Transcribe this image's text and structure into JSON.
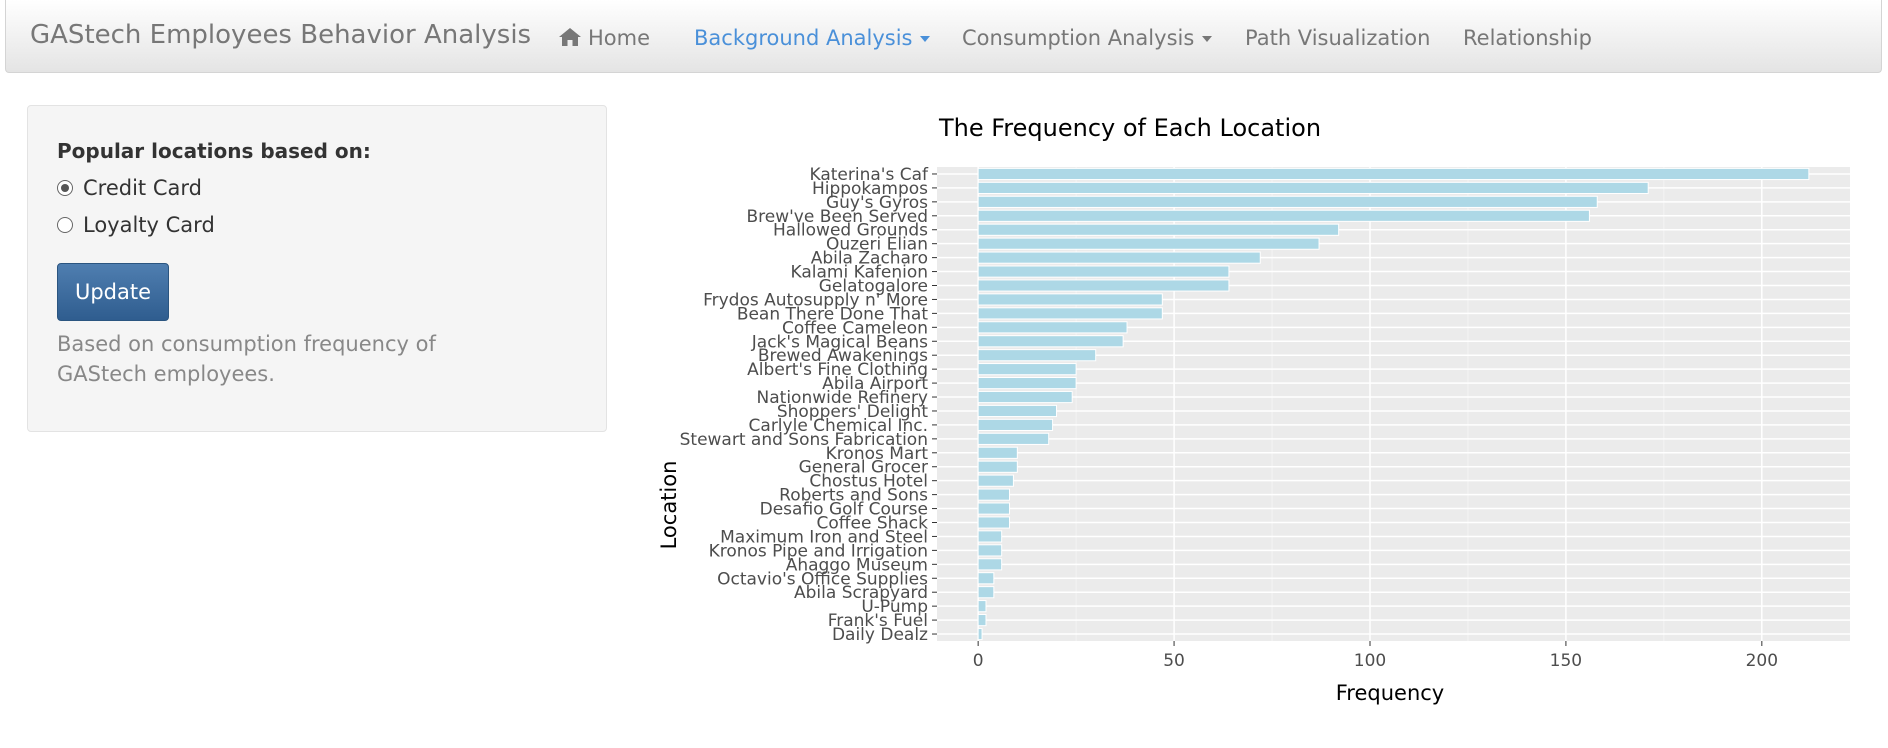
{
  "navbar": {
    "brand": "GAStech Employees Behavior Analysis",
    "items": [
      {
        "label": "Home",
        "icon": "home-icon"
      },
      {
        "label": "Background Analysis",
        "dropdown": true,
        "active": true
      },
      {
        "label": "Consumption Analysis",
        "dropdown": true
      },
      {
        "label": "Path Visualization"
      },
      {
        "label": "Relationship"
      }
    ],
    "active_color": "#4a90d9"
  },
  "sidebar": {
    "title": "Popular locations based on:",
    "options": [
      {
        "label": "Credit Card",
        "checked": true
      },
      {
        "label": "Loyalty Card",
        "checked": false
      }
    ],
    "update_label": "Update",
    "help_text": "Based on consumption frequency of GAStech employees."
  },
  "chart_data": {
    "type": "bar",
    "orientation": "horizontal",
    "title": "The Frequency of Each Location",
    "xlabel": "Frequency",
    "ylabel": "Location",
    "xlim": [
      -10.5,
      222.5
    ],
    "xticks": [
      0,
      50,
      100,
      150,
      200
    ],
    "grid": true,
    "bar_color": "#add8e6",
    "panel_color": "#ebebeb",
    "categories": [
      "Katerina's Caf",
      "Hippokampos",
      "Guy's Gyros",
      "Brew've Been Served",
      "Hallowed Grounds",
      "Ouzeri Elian",
      "Abila Zacharo",
      "Kalami Kafenion",
      "Gelatogalore",
      "Frydos Autosupply n' More",
      "Bean There Done That",
      "Coffee Cameleon",
      "Jack's Magical Beans",
      "Brewed Awakenings",
      "Albert's Fine Clothing",
      "Abila Airport",
      "Nationwide Refinery",
      "Shoppers' Delight",
      "Carlyle Chemical Inc.",
      "Stewart and Sons Fabrication",
      "Kronos Mart",
      "General Grocer",
      "Chostus Hotel",
      "Roberts and Sons",
      "Desafio Golf Course",
      "Coffee Shack",
      "Maximum Iron and Steel",
      "Kronos Pipe and Irrigation",
      "Ahaggo Museum",
      "Octavio's Office Supplies",
      "Abila Scrapyard",
      "U-Pump",
      "Frank's Fuel",
      "Daily Dealz"
    ],
    "values": [
      212,
      171,
      158,
      156,
      92,
      87,
      72,
      64,
      64,
      47,
      47,
      38,
      37,
      30,
      25,
      25,
      24,
      20,
      19,
      18,
      10,
      10,
      9,
      8,
      8,
      8,
      6,
      6,
      6,
      4,
      4,
      2,
      2,
      1
    ]
  }
}
